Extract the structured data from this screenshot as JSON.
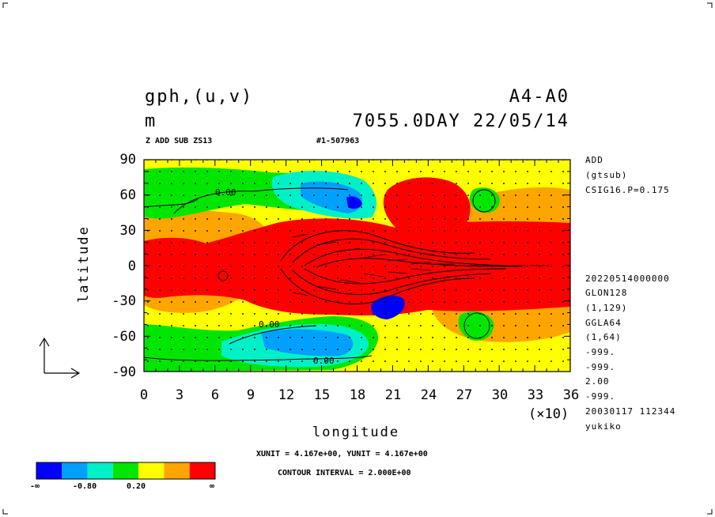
{
  "header": {
    "variable": "gph,(u,v)",
    "units": "m",
    "experiment": "A4-A0",
    "time": "7055.0DAY 22/05/14",
    "op_note": "Z ADD SUB ZS13",
    "run_id": "#1-507963"
  },
  "side_info": [
    "ADD",
    "(gtsub)",
    "CSIG16.P=0.175",
    "20220514000000",
    "GLON128",
    "(1,129)",
    "GGLA64",
    "(1,64)",
    "-999.",
    "-999.",
    "2.00",
    "-999.",
    "20030117 112344",
    "yukiko"
  ],
  "footer": {
    "unit_note": "XUNIT = 4.167e+00, YUNIT = 4.167e+00",
    "contour_note": "CONTOUR INTERVAL = 2.000E+00"
  },
  "colorbar": {
    "colors": [
      "#0000ff",
      "#00a0ff",
      "#00f0c8",
      "#00e600",
      "#ffff00",
      "#ffa500",
      "#ff0000"
    ],
    "labels": [
      "-∞",
      "-0.80",
      "0.20",
      "∞"
    ]
  },
  "chart_data": {
    "type": "heatmap",
    "xlabel": "longitude",
    "ylabel": "latitude",
    "x_scale_note": "(×10)",
    "xlim": [
      0,
      36
    ],
    "ylim": [
      -90,
      90
    ],
    "xticks": [
      "0",
      "3",
      "6",
      "9",
      "12",
      "15",
      "18",
      "21",
      "24",
      "27",
      "30",
      "33",
      "36"
    ],
    "yticks": [
      "90",
      "60",
      "30",
      "0",
      "-30",
      "-60",
      "-90"
    ],
    "contour_labels": [
      "0.00",
      "0.00",
      "0.00"
    ],
    "field_regions": [
      {
        "level": "high",
        "region": "tropical band",
        "lon": [
          10,
          36
        ],
        "lat": [
          -25,
          25
        ]
      },
      {
        "level": "high",
        "region": "NH mid-latitudes east",
        "lon": [
          21,
          28
        ],
        "lat": [
          45,
          75
        ]
      },
      {
        "level": "low",
        "region": "Arctic trough",
        "lon": [
          12,
          19
        ],
        "lat": [
          55,
          75
        ]
      },
      {
        "level": "low",
        "region": "Southern Ocean trough",
        "lon": [
          10,
          19
        ],
        "lat": [
          -75,
          -50
        ]
      },
      {
        "level": "lowest",
        "region": "minimum",
        "lon": [
          19,
          21
        ],
        "lat": [
          -40,
          -30
        ]
      }
    ]
  }
}
